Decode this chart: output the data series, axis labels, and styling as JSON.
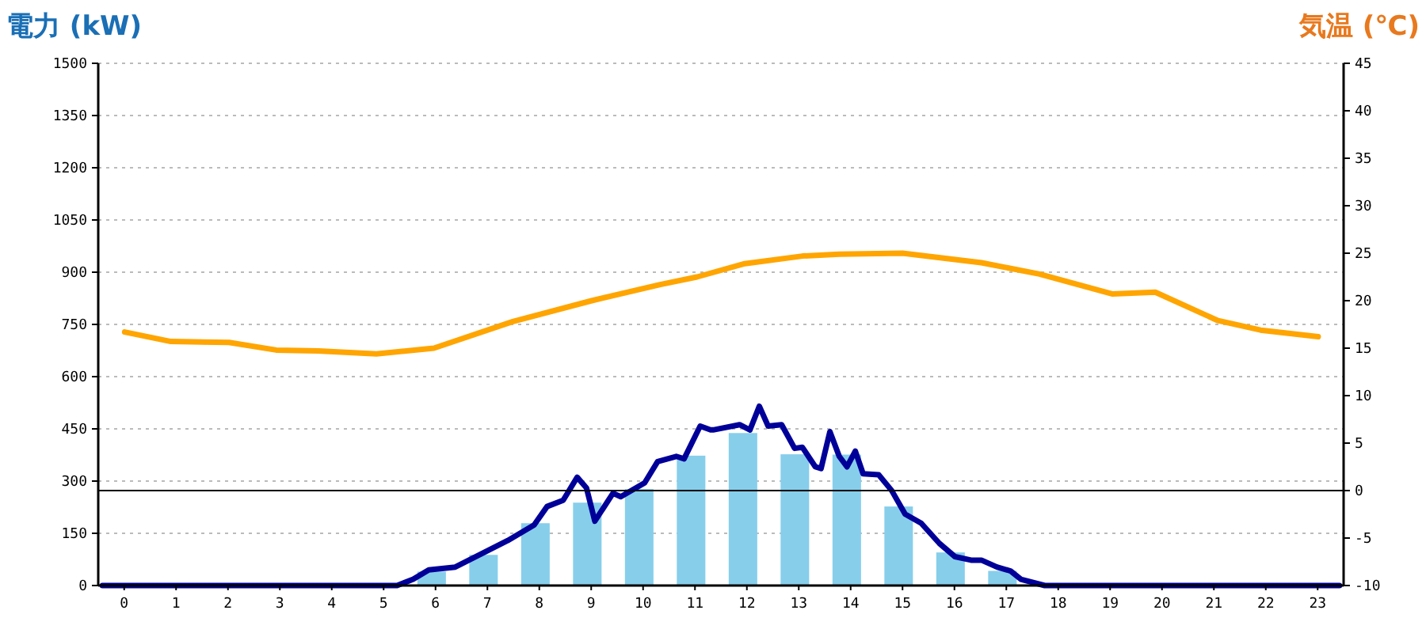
{
  "chart_data": {
    "type": "bar",
    "ylabel": "電力 (kW)",
    "y2label": "気温 (℃)",
    "x": [
      0,
      1,
      2,
      3,
      4,
      5,
      6,
      7,
      8,
      9,
      10,
      11,
      12,
      13,
      14,
      15,
      16,
      17,
      18,
      19,
      20,
      21,
      22,
      23
    ],
    "xlim": [
      -0.5,
      23.5
    ],
    "xticks": [
      0,
      1,
      2,
      3,
      4,
      5,
      6,
      7,
      8,
      9,
      10,
      11,
      12,
      13,
      14,
      15,
      16,
      17,
      18,
      19,
      20,
      21,
      22,
      23
    ],
    "series": [
      {
        "color": "#87ceeb",
        "values": [
          0,
          0,
          0,
          0,
          0,
          0,
          40,
          88,
          179,
          238,
          277,
          373,
          438,
          377,
          376,
          227,
          95,
          42,
          0,
          0,
          0,
          0,
          0,
          0
        ]
      },
      {
        "type": "line",
        "color": "#000099",
        "x": [
          -0.42,
          5.26,
          5.57,
          5.87,
          6.38,
          6.78,
          7.39,
          7.9,
          8.15,
          8.46,
          8.73,
          8.91,
          9.07,
          9.42,
          9.57,
          10.03,
          10.28,
          10.64,
          10.79,
          11.1,
          11.3,
          11.35,
          11.86,
          12.06,
          12.24,
          12.41,
          12.67,
          12.92,
          13.07,
          13.32,
          13.43,
          13.6,
          13.78,
          13.93,
          14.09,
          14.24,
          14.54,
          14.79,
          15.05,
          15.36,
          15.71,
          16.01,
          16.32,
          16.52,
          16.82,
          17.08,
          17.28,
          17.74,
          23.42
        ],
        "values": [
          0,
          0,
          18,
          45,
          53,
          83,
          129,
          174,
          227,
          245,
          311,
          280,
          185,
          265,
          255,
          295,
          356,
          371,
          364,
          458,
          447,
          447,
          462,
          447,
          515,
          458,
          462,
          394,
          397,
          341,
          336,
          442,
          371,
          341,
          386,
          321,
          318,
          273,
          205,
          179,
          121,
          83,
          73,
          73,
          53,
          42,
          18,
          0,
          0
        ]
      },
      {
        "type": "line",
        "axis": "y2",
        "color": "#ffa500",
        "x": [
          0.01,
          0.9,
          2.02,
          2.93,
          3.74,
          4.86,
          5.97,
          7.49,
          9.01,
          10.33,
          11.04,
          11.96,
          13.07,
          13.78,
          15.0,
          16.52,
          17.64,
          19.05,
          19.87,
          21.08,
          21.9,
          23.01
        ],
        "values": [
          16.7,
          15.7,
          15.6,
          14.8,
          14.7,
          14.4,
          15.0,
          17.8,
          20.0,
          21.7,
          22.5,
          23.9,
          24.7,
          24.9,
          25.0,
          24.0,
          22.8,
          20.7,
          20.9,
          17.9,
          16.9,
          16.2
        ]
      }
    ],
    "ylim": [
      0,
      1500
    ],
    "yticks": [
      0,
      150,
      300,
      450,
      600,
      750,
      900,
      1050,
      1200,
      1350,
      1500
    ],
    "y2lim": [
      -10,
      45
    ],
    "y2ticks": [
      -10,
      -5,
      0,
      5,
      10,
      15,
      20,
      25,
      30,
      35,
      40,
      45
    ],
    "grid": "y",
    "marker": "none",
    "line_style": "solid",
    "ref_lines": [
      {
        "axis": "y2",
        "value": 0,
        "color": "#000000"
      }
    ]
  }
}
